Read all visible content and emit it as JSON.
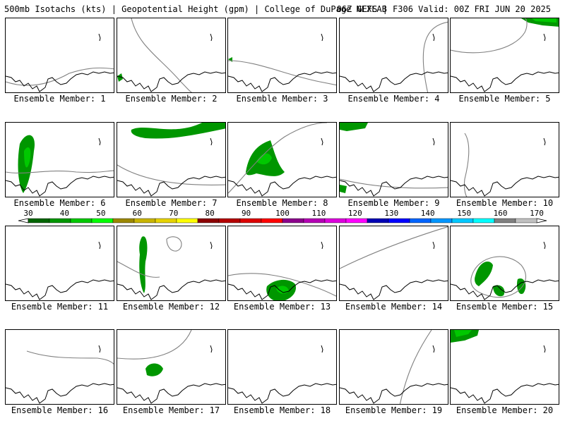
{
  "header": {
    "left": "500mb Isotachs (kts) | Geopotential Height (gpm) | College of DuPage NEXLAB",
    "right": "06Z GEFS | F306 Valid: 00Z FRI JUN 20 2025"
  },
  "members": [
    {
      "label": "Ensemble Member: 1",
      "shading": "none"
    },
    {
      "label": "Ensemble Member: 2",
      "shading": "small"
    },
    {
      "label": "Ensemble Member: 3",
      "shading": "small"
    },
    {
      "label": "Ensemble Member: 4",
      "shading": "none"
    },
    {
      "label": "Ensemble Member: 5",
      "shading": "small"
    },
    {
      "label": "Ensemble Member: 6",
      "shading": "large"
    },
    {
      "label": "Ensemble Member: 7",
      "shading": "large"
    },
    {
      "label": "Ensemble Member: 8",
      "shading": "large"
    },
    {
      "label": "Ensemble Member: 9",
      "shading": "small"
    },
    {
      "label": "Ensemble Member: 10",
      "shading": "none"
    },
    {
      "label": "Ensemble Member: 11",
      "shading": "none"
    },
    {
      "label": "Ensemble Member: 12",
      "shading": "large"
    },
    {
      "label": "Ensemble Member: 13",
      "shading": "medium"
    },
    {
      "label": "Ensemble Member: 14",
      "shading": "none"
    },
    {
      "label": "Ensemble Member: 15",
      "shading": "large"
    },
    {
      "label": "Ensemble Member: 16",
      "shading": "none"
    },
    {
      "label": "Ensemble Member: 17",
      "shading": "medium"
    },
    {
      "label": "Ensemble Member: 18",
      "shading": "none"
    },
    {
      "label": "Ensemble Member: 19",
      "shading": "none"
    },
    {
      "label": "Ensemble Member: 20",
      "shading": "small"
    }
  ],
  "colorbar": {
    "ticks": [
      "30",
      "40",
      "50",
      "60",
      "70",
      "80",
      "90",
      "100",
      "110",
      "120",
      "130",
      "140",
      "150",
      "160",
      "170"
    ],
    "colors": [
      "#006400",
      "#009600",
      "#00c800",
      "#00ff00",
      "#9b8700",
      "#c8b400",
      "#e6d200",
      "#ffff00",
      "#8b0000",
      "#b40000",
      "#dc0000",
      "#ff0000",
      "#8b008b",
      "#b400b4",
      "#dc00dc",
      "#ff00ff",
      "#0000b4",
      "#0000ff",
      "#0064ff",
      "#0096ff",
      "#00c8ff",
      "#00ffff",
      "#808080",
      "#c0c0c0"
    ]
  },
  "colors": {
    "coast": "#000000",
    "contour": "#808080",
    "wind_dark": "#006400",
    "wind_mid": "#009600",
    "wind_light": "#00c800"
  }
}
